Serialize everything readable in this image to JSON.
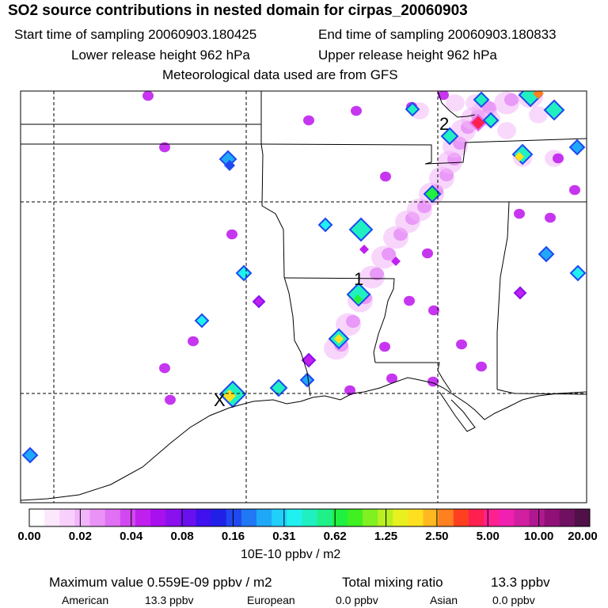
{
  "header": {
    "title": "SO2 source contributions in nested domain for cirpas_20060903",
    "start_time": "Start time of sampling 20060903.180425",
    "end_time": "End time of sampling 20060903.180833",
    "lower_height": "Lower release height  962 hPa",
    "upper_height": "Upper release height  962 hPa",
    "met_data": "Meteorological data used are from GFS"
  },
  "chart_data": {
    "type": "heatmap",
    "title": "SO2 source contributions in nested domain for cirpas_20060903",
    "colorbar": {
      "tick_labels": [
        "0.00",
        "0.02",
        "0.04",
        "0.08",
        "0.16",
        "0.31",
        "0.62",
        "1.25",
        "2.50",
        "5.00",
        "10.00",
        "20.00"
      ],
      "units": "10E-10 ppbv / m2",
      "colors": [
        "#ffffff",
        "#fce8fc",
        "#f8d0fb",
        "#f2b4fa",
        "#ea92f6",
        "#e070f4",
        "#d248f0",
        "#c020ee",
        "#a810ee",
        "#8a10ee",
        "#6a10ee",
        "#4010ee",
        "#2020e6",
        "#2048f0",
        "#2078f4",
        "#20a8f8",
        "#20d0fa",
        "#20f0f0",
        "#20f0c0",
        "#20f088",
        "#20f040",
        "#40f020",
        "#80f020",
        "#b8f020",
        "#e8f020",
        "#ffe020",
        "#ffb820",
        "#ff8020",
        "#ff4020",
        "#ff2050",
        "#ff2090",
        "#f020b0",
        "#d020a0",
        "#b01890",
        "#901078",
        "#701060",
        "#501048"
      ]
    },
    "markers": [
      {
        "label": "1",
        "description": "sampling point 1"
      },
      {
        "label": "2",
        "description": "sampling point 2"
      }
    ],
    "source_marker": "X",
    "footer": {
      "max_label": "Maximum value  0.559E-09 ppbv / m2",
      "total_label": "Total mixing ratio",
      "total_value": "13.3 ppbv",
      "sources": [
        {
          "name": "American",
          "value": "13.3 ppbv"
        },
        {
          "name": "European",
          "value": "0.0 ppbv"
        },
        {
          "name": "Asian",
          "value": "0.0 ppbv"
        }
      ]
    }
  }
}
